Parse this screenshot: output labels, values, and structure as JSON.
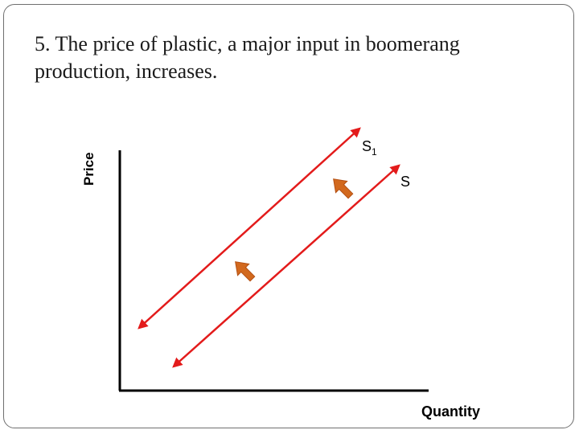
{
  "slide": {
    "title": "5. The price of plastic, a major input in boomerang production, increases."
  },
  "diagram": {
    "y_axis_label": "Price",
    "x_axis_label": "Quantity",
    "curves": [
      {
        "id": "S1",
        "label_main": "S",
        "label_sub": "1",
        "color": "#e31b1b"
      },
      {
        "id": "S",
        "label_main": "S",
        "label_sub": "",
        "color": "#e31b1b"
      }
    ],
    "shift_arrow_color": "#d2691e",
    "shift_arrow_border": "#b34f12"
  }
}
